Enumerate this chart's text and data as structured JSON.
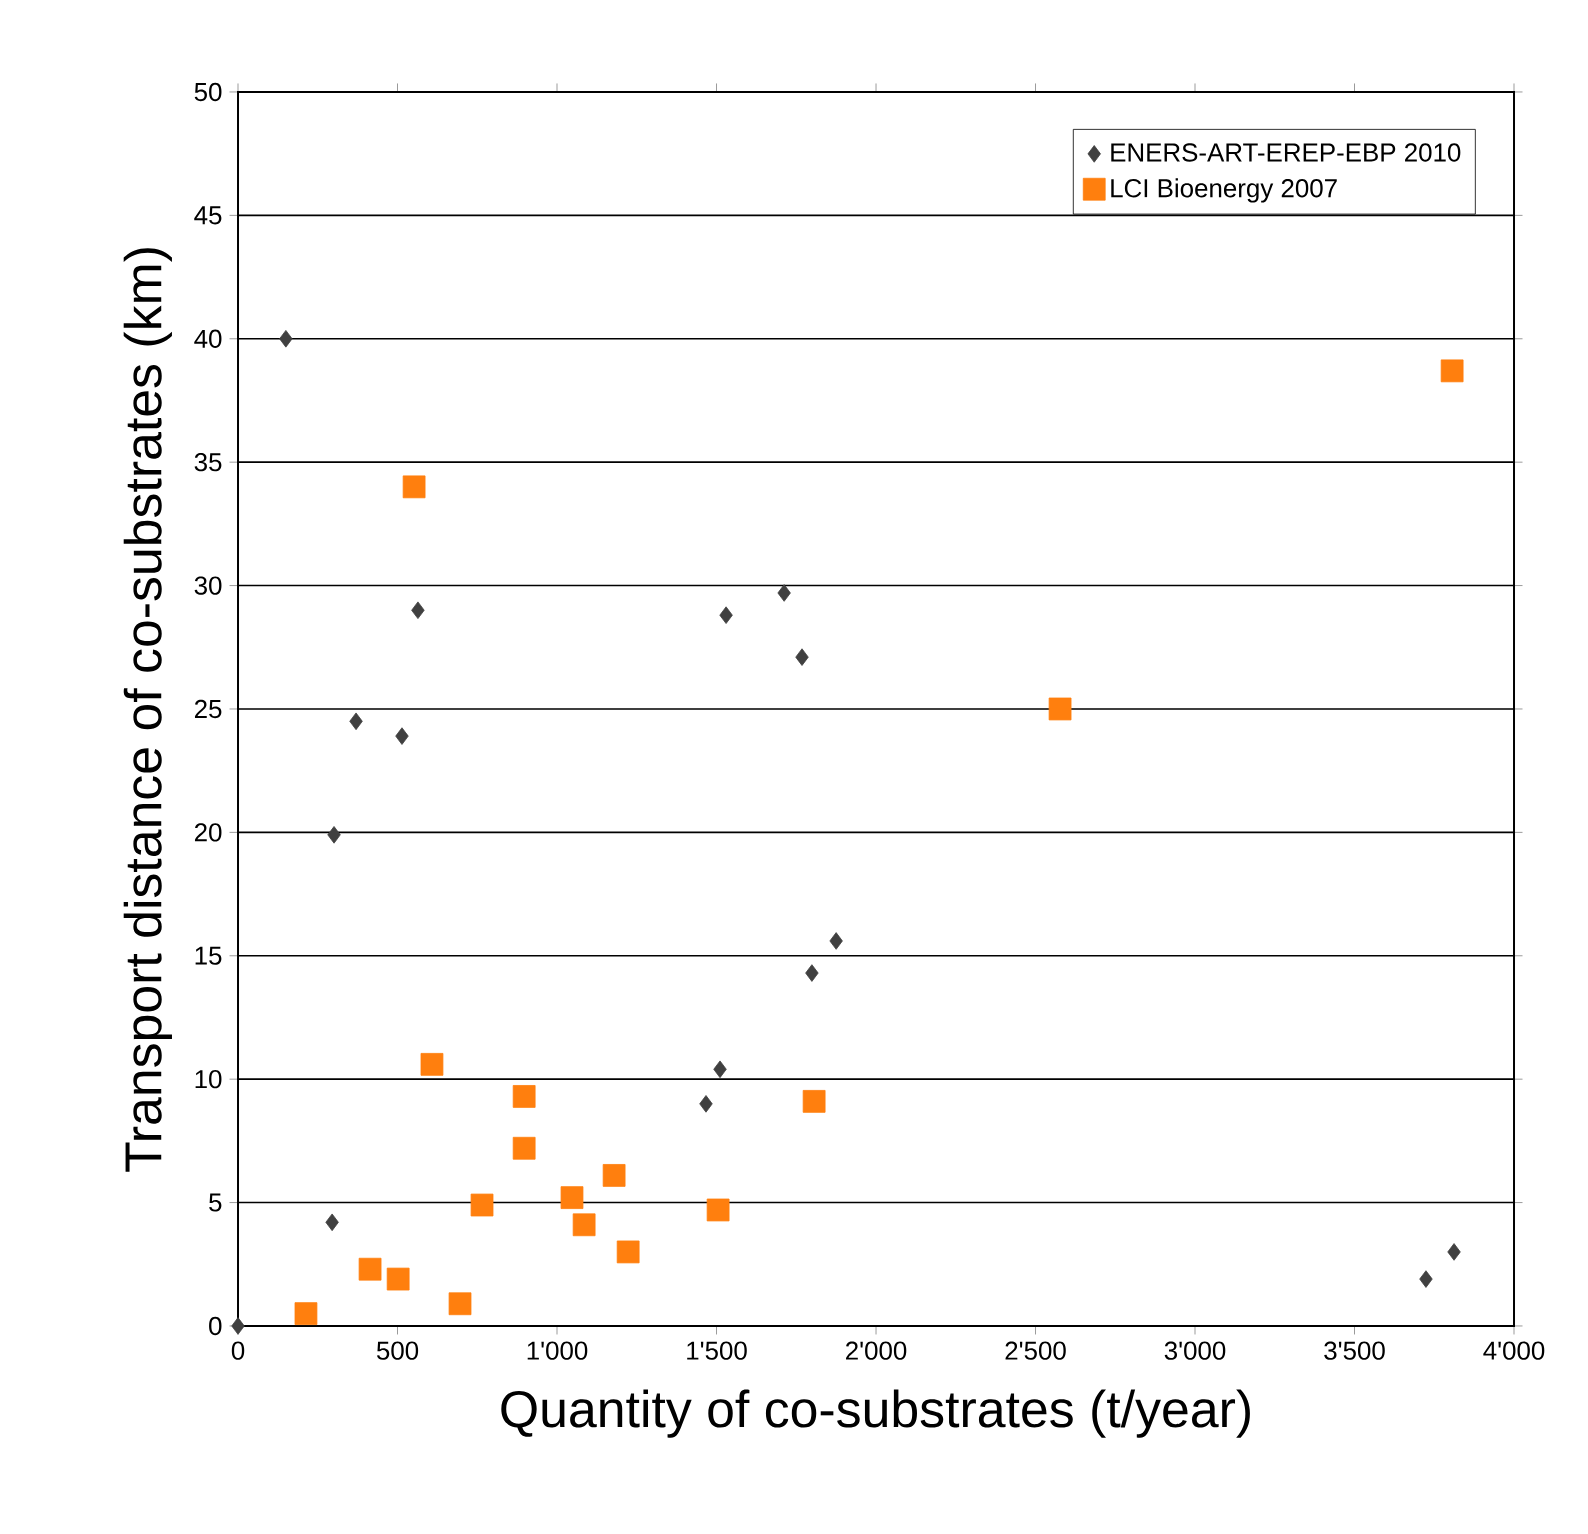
{
  "chart_data": {
    "type": "scatter",
    "xlabel": "Quantity of co-substrates (t/year)",
    "ylabel": "Transport distance of co-substrates (km)",
    "xlim": [
      0,
      4000
    ],
    "ylim": [
      0,
      50
    ],
    "xticks": [
      0,
      500,
      {
        "value": 1000,
        "label": "1'000"
      },
      {
        "value": 1500,
        "label": "1'500"
      },
      {
        "value": 2000,
        "label": "2'000"
      },
      {
        "value": 2500,
        "label": "2'500"
      },
      {
        "value": 3000,
        "label": "3'000"
      },
      {
        "value": 3500,
        "label": "3'500"
      },
      {
        "value": 4000,
        "label": "4'000"
      }
    ],
    "yticks": [
      0,
      5,
      10,
      15,
      20,
      25,
      30,
      35,
      40,
      45,
      50
    ],
    "grid": "y",
    "legend": "top right",
    "series": [
      {
        "name": "ENERS-ART-EREP-EBP 2010",
        "color": "#404040",
        "marker": "diamond",
        "x": [
          0,
          150,
          295,
          301,
          370,
          514,
          564,
          1467,
          1511,
          1530,
          1712,
          1768,
          1799,
          1875,
          3724,
          3812
        ],
        "values": [
          0,
          40,
          4.2,
          19.9,
          24.5,
          23.9,
          29.0,
          9.0,
          10.4,
          28.8,
          29.7,
          27.1,
          14.3,
          15.6,
          1.9,
          3.0
        ]
      },
      {
        "name": "LCI Bioenergy 2007",
        "color": "#ff7f0e",
        "marker": "square",
        "x": [
          213,
          414,
          502,
          552,
          608,
          696,
          765,
          897,
          897,
          1047,
          1085,
          1179,
          1223,
          1505,
          1806,
          2577,
          3806
        ],
        "values": [
          0.5,
          2.3,
          1.9,
          34.0,
          10.6,
          0.9,
          4.9,
          9.3,
          7.2,
          5.2,
          4.1,
          6.1,
          3.0,
          4.7,
          9.1,
          25.0,
          38.7
        ]
      }
    ]
  }
}
